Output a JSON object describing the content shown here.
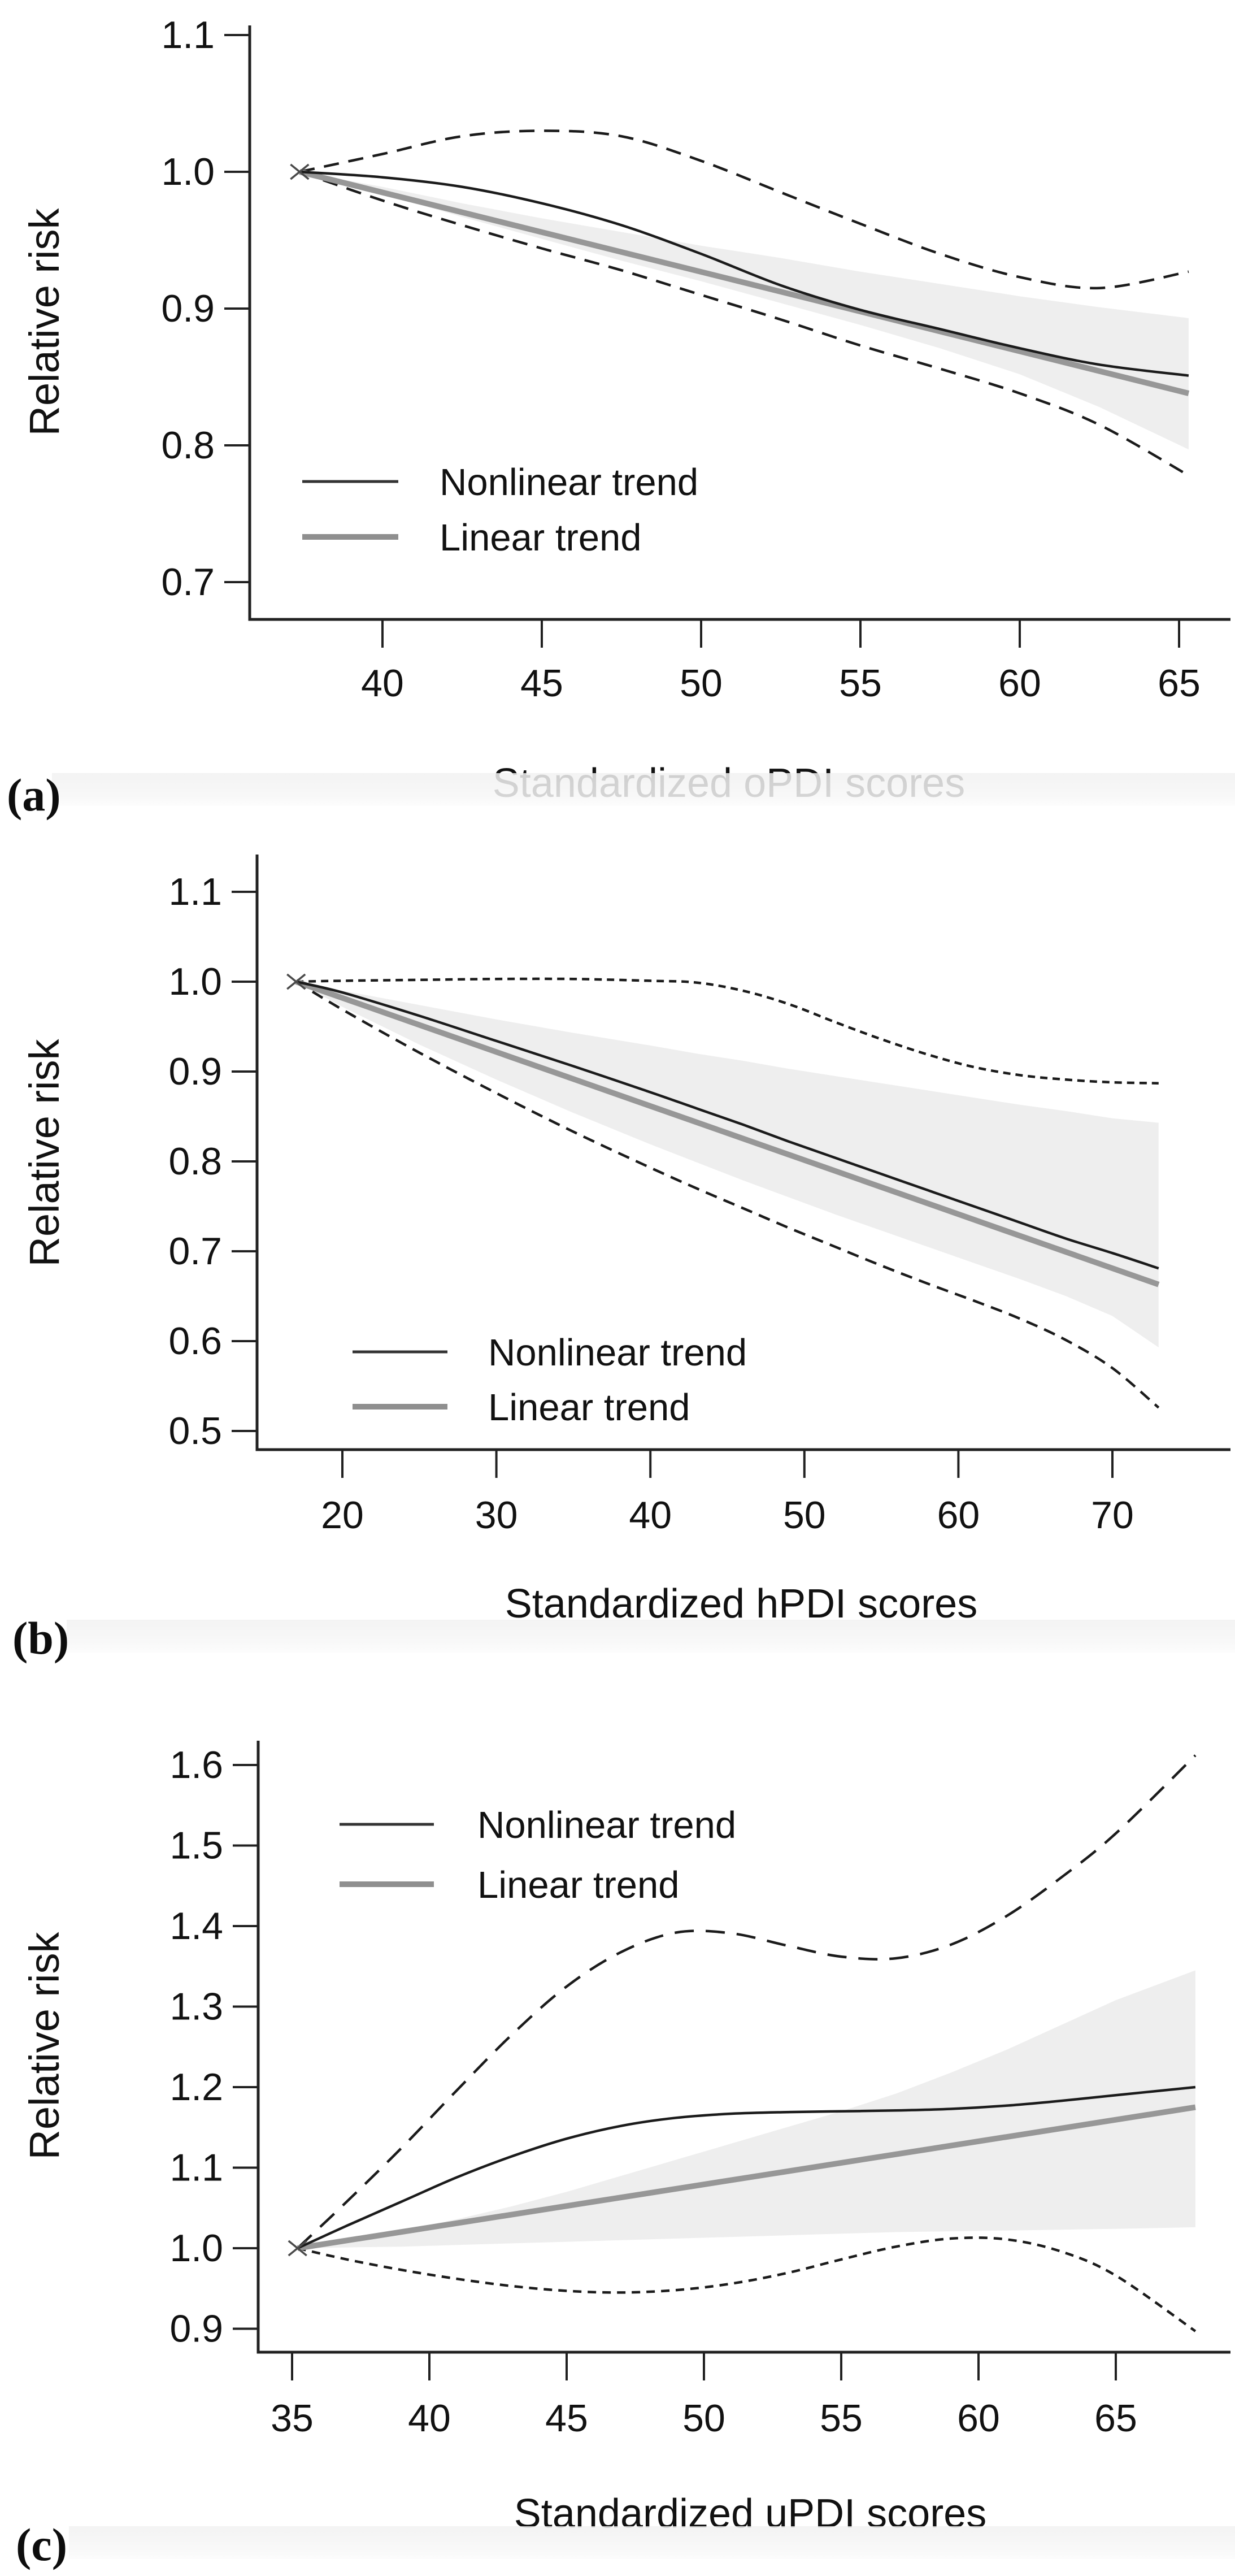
{
  "figure": {
    "ylabel": "Relative risk",
    "legend": {
      "nonlinear": "Nonlinear trend",
      "linear": "Linear trend"
    },
    "colors": {
      "nonlinear_line": "#1b1b1b",
      "linear_line": "#979797",
      "ci_line": "#1b1b1b",
      "band_fill": "#eeeeee",
      "axis": "#212121",
      "text": "#111111"
    }
  },
  "panels": [
    {
      "label": "(a)"
    },
    {
      "label": "(b)"
    },
    {
      "label": "(c)"
    }
  ],
  "chart_data": [
    {
      "type": "line",
      "title": "",
      "xlabel": "Standardized oPDI scores",
      "ylabel": "Relative risk",
      "x_ticks": [
        40,
        45,
        50,
        55,
        60,
        65
      ],
      "y_ticks": [
        0.7,
        0.8,
        0.9,
        1.0,
        1.1
      ],
      "xlim": [
        36,
        66.5
      ],
      "ylim": [
        0.67,
        1.12
      ],
      "grid": false,
      "legend_position": "lower-left",
      "legend": [
        "Nonlinear trend",
        "Linear trend"
      ],
      "band": {
        "upper": [
          [
            37.4,
            1.0
          ],
          [
            40,
            0.989
          ],
          [
            42.5,
            0.977
          ],
          [
            45,
            0.966
          ],
          [
            47.5,
            0.956
          ],
          [
            50,
            0.946
          ],
          [
            52.5,
            0.937
          ],
          [
            55,
            0.927
          ],
          [
            57.5,
            0.918
          ],
          [
            60,
            0.909
          ],
          [
            62.5,
            0.901
          ],
          [
            65.3,
            0.893
          ]
        ],
        "lower": [
          [
            37.4,
            1.0
          ],
          [
            40,
            0.984
          ],
          [
            42.5,
            0.967
          ],
          [
            45,
            0.951
          ],
          [
            47.5,
            0.935
          ],
          [
            50,
            0.92
          ],
          [
            52.5,
            0.904
          ],
          [
            55,
            0.888
          ],
          [
            57.5,
            0.871
          ],
          [
            60,
            0.852
          ],
          [
            62.5,
            0.828
          ],
          [
            65.3,
            0.797
          ]
        ]
      },
      "series": [
        {
          "name": "Upper 95% CI",
          "role": "ci_upper",
          "points": [
            [
              37.4,
              1.0
            ],
            [
              40,
              1.013
            ],
            [
              42.5,
              1.026
            ],
            [
              45,
              1.03
            ],
            [
              47.5,
              1.026
            ],
            [
              50,
              1.008
            ],
            [
              52.5,
              0.985
            ],
            [
              55,
              0.962
            ],
            [
              57.5,
              0.94
            ],
            [
              60,
              0.923
            ],
            [
              62.5,
              0.915
            ],
            [
              65.3,
              0.927
            ]
          ]
        },
        {
          "name": "Lower 95% CI",
          "role": "ci_lower",
          "points": [
            [
              37.4,
              1.0
            ],
            [
              40,
              0.979
            ],
            [
              42.5,
              0.961
            ],
            [
              45,
              0.944
            ],
            [
              47.5,
              0.928
            ],
            [
              50,
              0.91
            ],
            [
              52.5,
              0.892
            ],
            [
              55,
              0.873
            ],
            [
              57.5,
              0.856
            ],
            [
              60,
              0.838
            ],
            [
              62.5,
              0.815
            ],
            [
              65.3,
              0.778
            ]
          ]
        },
        {
          "name": "Linear trend",
          "role": "linear",
          "points": [
            [
              37.4,
              1.0
            ],
            [
              65.3,
              0.838
            ]
          ]
        },
        {
          "name": "Nonlinear trend",
          "role": "nonlinear",
          "points": [
            [
              37.4,
              1.0
            ],
            [
              40,
              0.996
            ],
            [
              42.5,
              0.989
            ],
            [
              45,
              0.977
            ],
            [
              47.5,
              0.961
            ],
            [
              50,
              0.94
            ],
            [
              52.5,
              0.917
            ],
            [
              55,
              0.899
            ],
            [
              57.5,
              0.885
            ],
            [
              60,
              0.871
            ],
            [
              62.5,
              0.859
            ],
            [
              65.3,
              0.851
            ]
          ]
        }
      ]
    },
    {
      "type": "line",
      "title": "",
      "xlabel": "Standardized hPDI scores",
      "ylabel": "Relative risk",
      "x_ticks": [
        20,
        30,
        40,
        50,
        60,
        70
      ],
      "y_ticks": [
        0.5,
        0.6,
        0.7,
        0.8,
        0.9,
        1.0,
        1.1
      ],
      "xlim": [
        15,
        75
      ],
      "ylim": [
        0.47,
        1.14
      ],
      "grid": false,
      "legend_position": "lower-left",
      "legend": [
        "Nonlinear trend",
        "Linear trend"
      ],
      "band": {
        "upper": [
          [
            17,
            1.0
          ],
          [
            20,
            0.99
          ],
          [
            25,
            0.974
          ],
          [
            30,
            0.958
          ],
          [
            35,
            0.943
          ],
          [
            40,
            0.929
          ],
          [
            43,
            0.92
          ],
          [
            46,
            0.912
          ],
          [
            49,
            0.903
          ],
          [
            52,
            0.895
          ],
          [
            55,
            0.887
          ],
          [
            58,
            0.879
          ],
          [
            61,
            0.871
          ],
          [
            64,
            0.863
          ],
          [
            67,
            0.856
          ],
          [
            70,
            0.848
          ],
          [
            73,
            0.843
          ]
        ],
        "lower": [
          [
            17,
            1.0
          ],
          [
            20,
            0.972
          ],
          [
            25,
            0.93
          ],
          [
            30,
            0.891
          ],
          [
            35,
            0.854
          ],
          [
            40,
            0.819
          ],
          [
            43,
            0.799
          ],
          [
            46,
            0.779
          ],
          [
            49,
            0.76
          ],
          [
            52,
            0.741
          ],
          [
            55,
            0.723
          ],
          [
            58,
            0.705
          ],
          [
            61,
            0.687
          ],
          [
            64,
            0.669
          ],
          [
            67,
            0.65
          ],
          [
            70,
            0.628
          ],
          [
            73,
            0.593
          ]
        ]
      },
      "series": [
        {
          "name": "Upper 95% CI",
          "role": "ci_upper",
          "points": [
            [
              17,
              1.0
            ],
            [
              20,
              1.001
            ],
            [
              25,
              1.002
            ],
            [
              30,
              1.003
            ],
            [
              35,
              1.003
            ],
            [
              40,
              1.001
            ],
            [
              43,
              0.999
            ],
            [
              46,
              0.99
            ],
            [
              49,
              0.975
            ],
            [
              52,
              0.955
            ],
            [
              55,
              0.936
            ],
            [
              58,
              0.919
            ],
            [
              61,
              0.905
            ],
            [
              64,
              0.896
            ],
            [
              67,
              0.891
            ],
            [
              70,
              0.888
            ],
            [
              73,
              0.887
            ]
          ]
        },
        {
          "name": "Lower 95% CI",
          "role": "ci_lower",
          "points": [
            [
              17,
              1.0
            ],
            [
              20,
              0.969
            ],
            [
              25,
              0.921
            ],
            [
              30,
              0.876
            ],
            [
              35,
              0.833
            ],
            [
              40,
              0.793
            ],
            [
              43,
              0.77
            ],
            [
              46,
              0.748
            ],
            [
              49,
              0.726
            ],
            [
              52,
              0.705
            ],
            [
              55,
              0.684
            ],
            [
              58,
              0.664
            ],
            [
              61,
              0.645
            ],
            [
              64,
              0.625
            ],
            [
              67,
              0.601
            ],
            [
              70,
              0.57
            ],
            [
              73,
              0.526
            ]
          ]
        },
        {
          "name": "Linear trend",
          "role": "linear",
          "points": [
            [
              17,
              1.0
            ],
            [
              73,
              0.663
            ]
          ]
        },
        {
          "name": "Nonlinear trend",
          "role": "nonlinear",
          "points": [
            [
              17,
              1.0
            ],
            [
              20,
              0.988
            ],
            [
              25,
              0.962
            ],
            [
              30,
              0.934
            ],
            [
              35,
              0.906
            ],
            [
              40,
              0.877
            ],
            [
              43,
              0.859
            ],
            [
              46,
              0.841
            ],
            [
              49,
              0.822
            ],
            [
              52,
              0.804
            ],
            [
              55,
              0.786
            ],
            [
              58,
              0.768
            ],
            [
              61,
              0.75
            ],
            [
              64,
              0.732
            ],
            [
              67,
              0.714
            ],
            [
              70,
              0.698
            ],
            [
              73,
              0.681
            ]
          ]
        }
      ]
    },
    {
      "type": "line",
      "title": "",
      "xlabel": "Standardized uPDI scores",
      "ylabel": "Relative risk",
      "x_ticks": [
        35,
        40,
        45,
        50,
        55,
        60,
        65
      ],
      "y_ticks": [
        0.9,
        1.0,
        1.1,
        1.2,
        1.3,
        1.4,
        1.5,
        1.6
      ],
      "xlim": [
        34,
        68.5
      ],
      "ylim": [
        0.86,
        1.65
      ],
      "grid": false,
      "legend_position": "upper-left",
      "legend": [
        "Nonlinear trend",
        "Linear trend"
      ],
      "band": {
        "upper": [
          [
            35.2,
            1.0
          ],
          [
            37,
            1.01
          ],
          [
            39,
            1.022
          ],
          [
            41,
            1.036
          ],
          [
            43,
            1.052
          ],
          [
            45,
            1.07
          ],
          [
            47,
            1.09
          ],
          [
            49,
            1.11
          ],
          [
            51,
            1.13
          ],
          [
            53,
            1.15
          ],
          [
            55,
            1.17
          ],
          [
            57,
            1.192
          ],
          [
            59,
            1.218
          ],
          [
            61,
            1.246
          ],
          [
            63,
            1.277
          ],
          [
            65,
            1.308
          ],
          [
            67.9,
            1.345
          ]
        ],
        "lower": [
          [
            35.2,
            1.0
          ],
          [
            37,
            1.001
          ],
          [
            39,
            1.002
          ],
          [
            41,
            1.004
          ],
          [
            43,
            1.006
          ],
          [
            45,
            1.008
          ],
          [
            47,
            1.01
          ],
          [
            49,
            1.012
          ],
          [
            51,
            1.014
          ],
          [
            53,
            1.016
          ],
          [
            55,
            1.018
          ],
          [
            57,
            1.02
          ],
          [
            59,
            1.021
          ],
          [
            61,
            1.022
          ],
          [
            63,
            1.023
          ],
          [
            65,
            1.024
          ],
          [
            67.9,
            1.026
          ]
        ]
      },
      "series": [
        {
          "name": "Upper 95% CI",
          "role": "ci_upper",
          "points": [
            [
              35.2,
              1.0
            ],
            [
              37,
              1.058
            ],
            [
              39,
              1.125
            ],
            [
              41,
              1.196
            ],
            [
              43,
              1.265
            ],
            [
              45,
              1.325
            ],
            [
              47,
              1.368
            ],
            [
              49,
              1.392
            ],
            [
              51,
              1.391
            ],
            [
              53,
              1.376
            ],
            [
              55,
              1.362
            ],
            [
              57,
              1.36
            ],
            [
              59,
              1.377
            ],
            [
              61,
              1.412
            ],
            [
              63,
              1.46
            ],
            [
              65,
              1.515
            ],
            [
              67.9,
              1.612
            ]
          ]
        },
        {
          "name": "Lower 95% CI",
          "role": "ci_lower",
          "points": [
            [
              35.2,
              1.0
            ],
            [
              37,
              0.986
            ],
            [
              39,
              0.973
            ],
            [
              41,
              0.962
            ],
            [
              43,
              0.953
            ],
            [
              45,
              0.947
            ],
            [
              47,
              0.945
            ],
            [
              49,
              0.948
            ],
            [
              51,
              0.956
            ],
            [
              53,
              0.969
            ],
            [
              55,
              0.986
            ],
            [
              57,
              1.002
            ],
            [
              59,
              1.012
            ],
            [
              61,
              1.011
            ],
            [
              63,
              0.996
            ],
            [
              65,
              0.966
            ],
            [
              67.9,
              0.897
            ]
          ]
        },
        {
          "name": "Linear trend",
          "role": "linear",
          "points": [
            [
              35.2,
              1.0
            ],
            [
              67.9,
              1.175
            ]
          ]
        },
        {
          "name": "Nonlinear trend",
          "role": "nonlinear",
          "points": [
            [
              35.2,
              1.0
            ],
            [
              37,
              1.028
            ],
            [
              39,
              1.058
            ],
            [
              41,
              1.088
            ],
            [
              43,
              1.114
            ],
            [
              45,
              1.136
            ],
            [
              47,
              1.152
            ],
            [
              49,
              1.162
            ],
            [
              51,
              1.167
            ],
            [
              53,
              1.169
            ],
            [
              55,
              1.17
            ],
            [
              57,
              1.171
            ],
            [
              59,
              1.173
            ],
            [
              61,
              1.177
            ],
            [
              63,
              1.183
            ],
            [
              65,
              1.19
            ],
            [
              67.9,
              1.2
            ]
          ]
        }
      ]
    }
  ]
}
